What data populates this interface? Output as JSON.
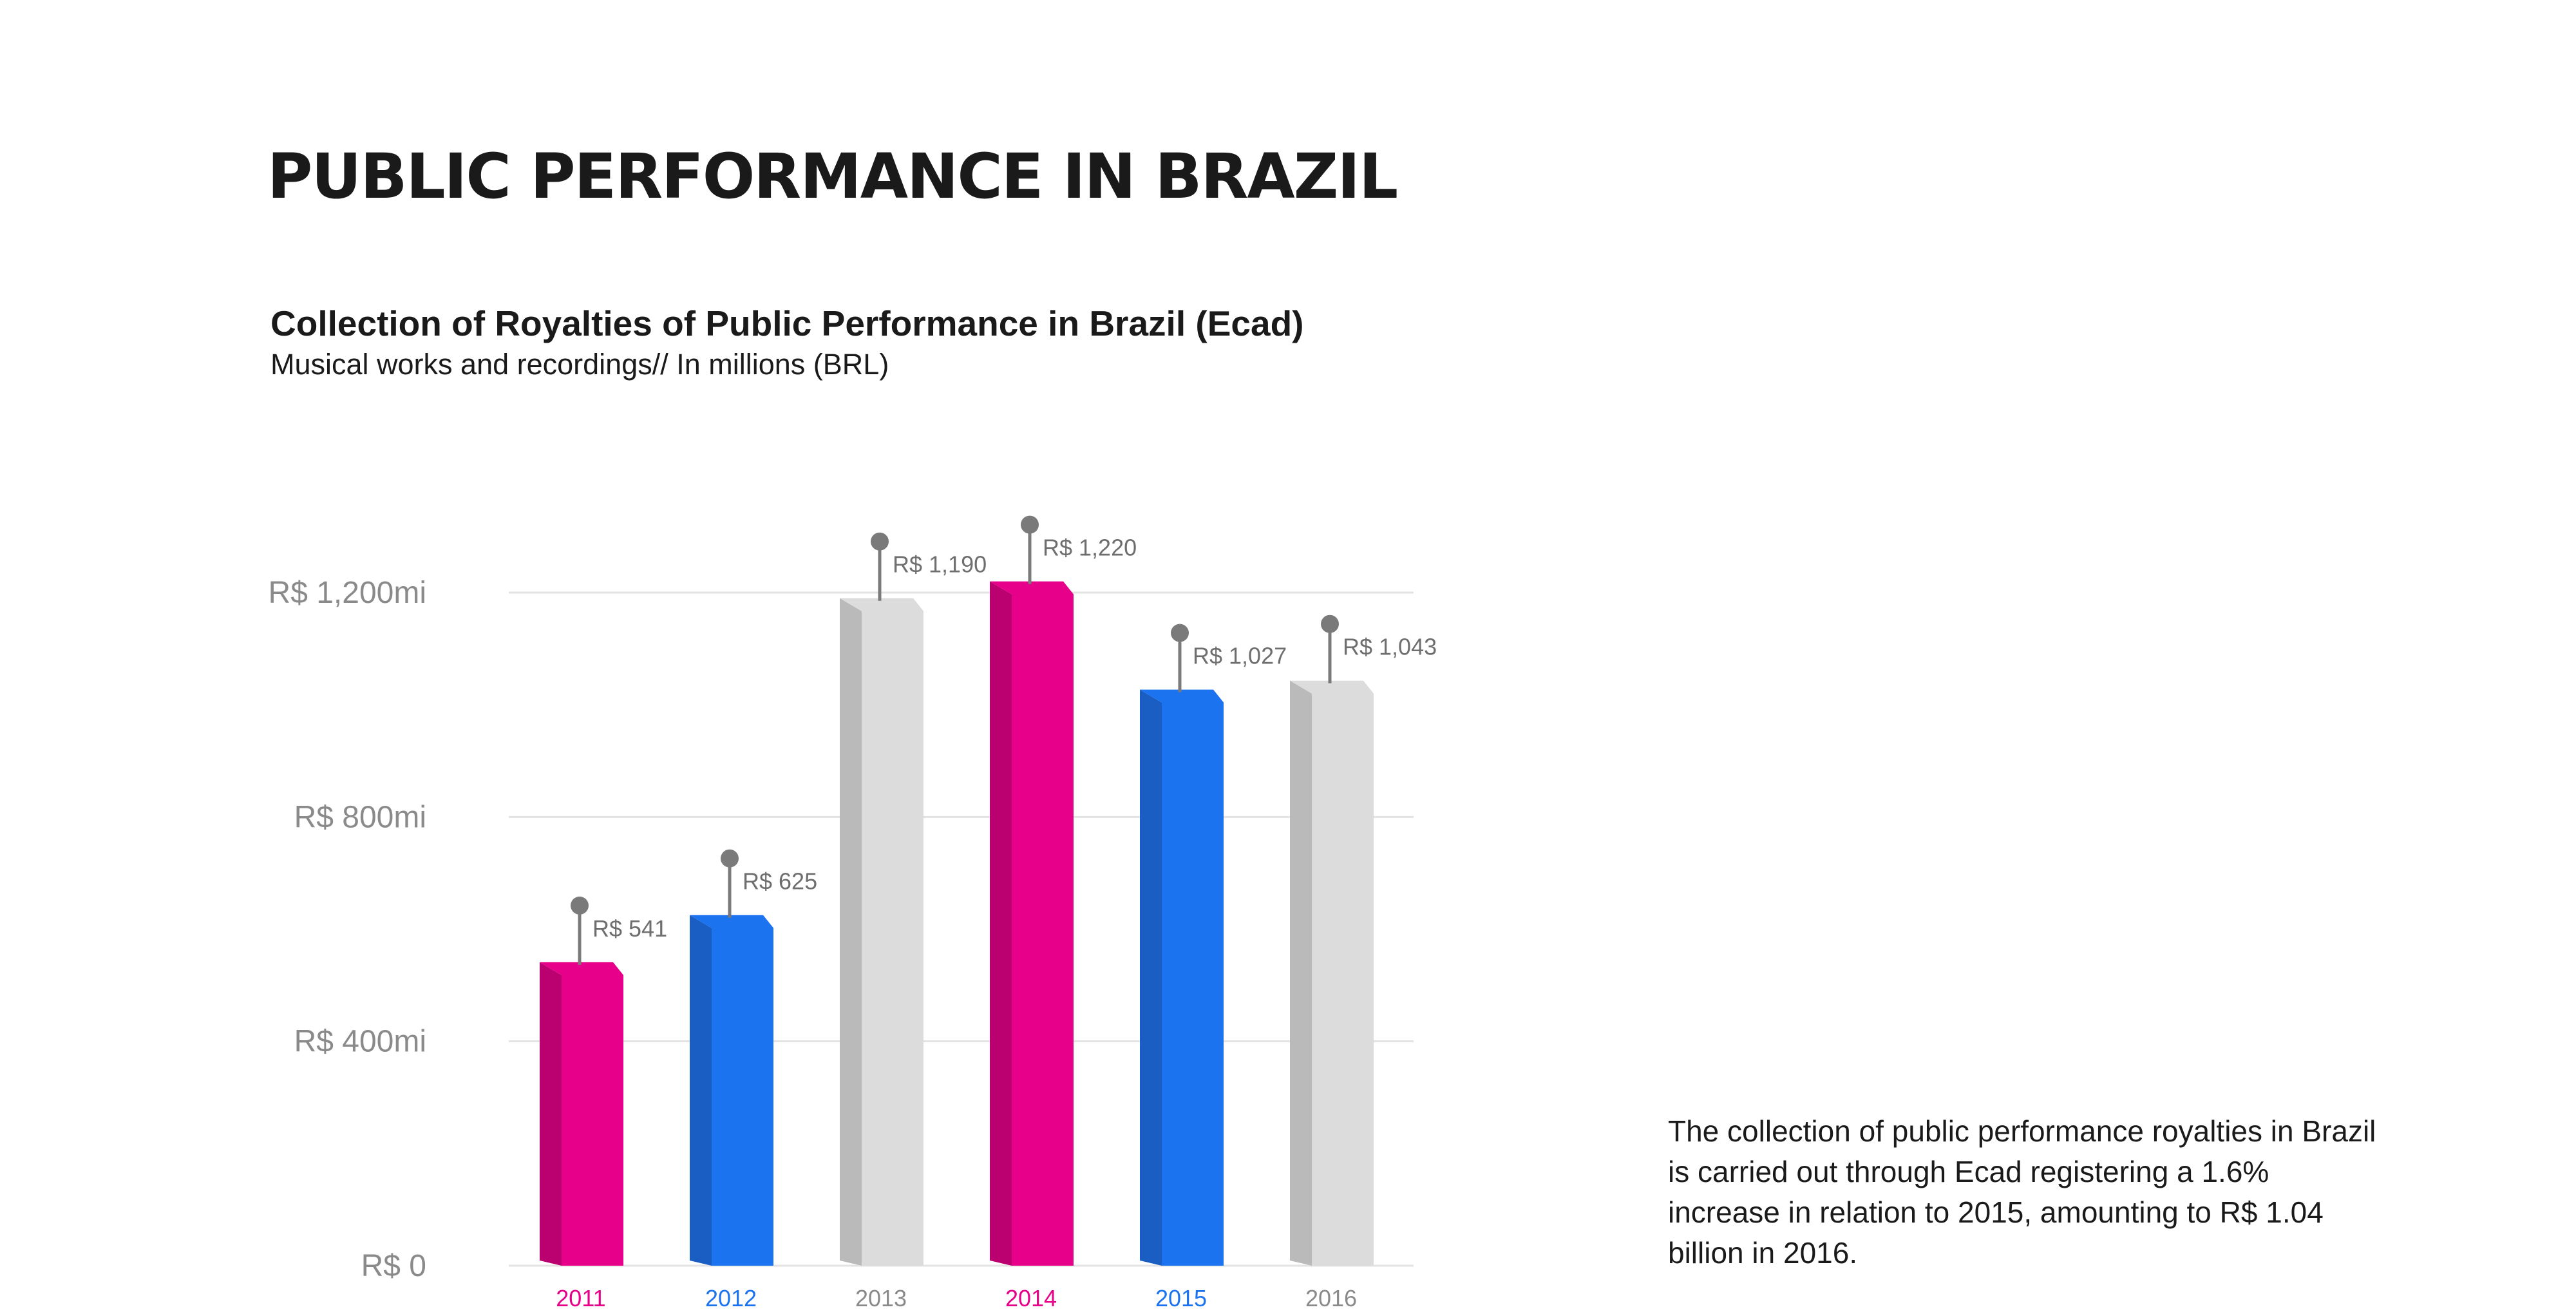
{
  "page": {
    "title": "PUBLIC PERFORMANCE IN BRAZIL"
  },
  "description": "The collection of public performance royalties in Brazil is carried out through Ecad registering a 1.6% increase in relation to 2015, amounting to R$ 1.04 billion in 2016.",
  "colors": {
    "magenta": "#E6008A",
    "blue": "#1C73F0",
    "gray": "#DCDCDC",
    "text": "#1a1a1a",
    "axis_text": "#8a8a8a",
    "pin": "#7a7a7a",
    "grid": "#e3e3e3"
  },
  "chart_data": {
    "type": "bar",
    "title": "Collection of Royalties of Public Performance in Brazil (Ecad)",
    "subtitle": "Musical works and recordings// In millions (BRL)",
    "xlabel": "",
    "ylabel": "",
    "categories": [
      "2011",
      "2012",
      "2013",
      "2014",
      "2015",
      "2016"
    ],
    "values": [
      541,
      625,
      1190,
      1220,
      1027,
      1043
    ],
    "data_labels": [
      "R$ 541",
      "R$ 625",
      "R$ 1,190",
      "R$ 1,220",
      "R$ 1,027",
      "R$ 1,043"
    ],
    "bar_colors": [
      "magenta",
      "blue",
      "gray",
      "magenta",
      "blue",
      "gray"
    ],
    "y_ticks": [
      {
        "value": 0,
        "label": "R$ 0"
      },
      {
        "value": 400,
        "label": "R$ 400mi"
      },
      {
        "value": 800,
        "label": "R$ 800mi"
      },
      {
        "value": 1200,
        "label": "R$ 1,200mi"
      }
    ],
    "ylim": [
      0,
      1200
    ],
    "grid": true,
    "legend": "none"
  }
}
